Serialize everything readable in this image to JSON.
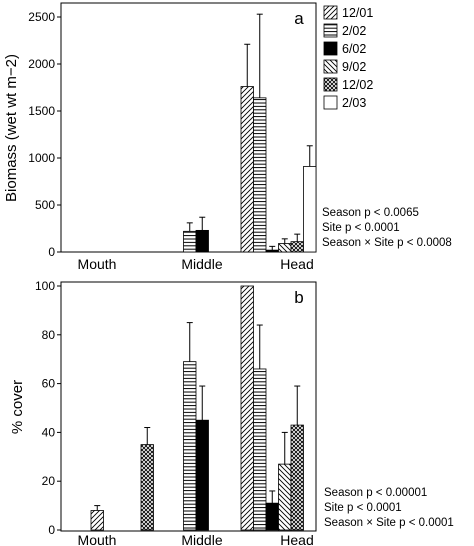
{
  "chart_data": [
    {
      "type": "bar",
      "panel_label": "a",
      "ylabel": "Biomass (wet wt m−2)",
      "ylim": [
        0,
        2500
      ],
      "yticks": [
        0,
        500,
        1000,
        1500,
        2000,
        2500
      ],
      "categories": [
        "Mouth",
        "Middle",
        "Head"
      ],
      "series": [
        {
          "name": "12/01",
          "values": [
            0,
            0,
            1760
          ],
          "errors": [
            0,
            0,
            450
          ]
        },
        {
          "name": "2/02",
          "values": [
            0,
            220,
            1640
          ],
          "errors": [
            0,
            90,
            890
          ]
        },
        {
          "name": "6/02",
          "values": [
            0,
            230,
            20
          ],
          "errors": [
            0,
            140,
            40
          ]
        },
        {
          "name": "9/02",
          "values": [
            0,
            0,
            90
          ],
          "errors": [
            0,
            0,
            50
          ]
        },
        {
          "name": "12/02",
          "values": [
            0,
            0,
            110
          ],
          "errors": [
            0,
            0,
            80
          ]
        },
        {
          "name": "2/03",
          "values": [
            0,
            0,
            910
          ],
          "errors": [
            0,
            0,
            220
          ]
        }
      ],
      "stats": [
        "Season p < 0.0065",
        "Site p < 0.0001",
        "Season × Site p < 0.0008"
      ]
    },
    {
      "type": "bar",
      "panel_label": "b",
      "ylabel": "% cover",
      "ylim": [
        0,
        100
      ],
      "yticks": [
        0,
        20,
        40,
        60,
        80,
        100
      ],
      "categories": [
        "Mouth",
        "Middle",
        "Head"
      ],
      "series": [
        {
          "name": "12/01",
          "values": [
            8,
            0,
            100
          ],
          "errors": [
            2,
            0,
            0
          ]
        },
        {
          "name": "2/02",
          "values": [
            0,
            69,
            66
          ],
          "errors": [
            0,
            16,
            18
          ]
        },
        {
          "name": "6/02",
          "values": [
            0,
            45,
            11
          ],
          "errors": [
            0,
            14,
            5
          ]
        },
        {
          "name": "9/02",
          "values": [
            0,
            0,
            27
          ],
          "errors": [
            0,
            0,
            13
          ]
        },
        {
          "name": "12/02",
          "values": [
            35,
            0,
            43
          ],
          "errors": [
            7,
            0,
            16
          ]
        },
        {
          "name": "2/03",
          "values": [
            0,
            0,
            0
          ],
          "errors": [
            0,
            0,
            0
          ]
        }
      ],
      "stats": [
        "Season p < 0.00001",
        "Site p < 0.0001",
        "Season × Site p < 0.0001"
      ]
    }
  ],
  "legend": {
    "placement": "right",
    "entries": [
      {
        "label": "12/01",
        "pattern": "diag-left"
      },
      {
        "label": "2/02",
        "pattern": "horizontal"
      },
      {
        "label": "6/02",
        "pattern": "solid-black"
      },
      {
        "label": "9/02",
        "pattern": "diag-right"
      },
      {
        "label": "12/02",
        "pattern": "crosshatch"
      },
      {
        "label": "2/03",
        "pattern": "white"
      }
    ]
  }
}
